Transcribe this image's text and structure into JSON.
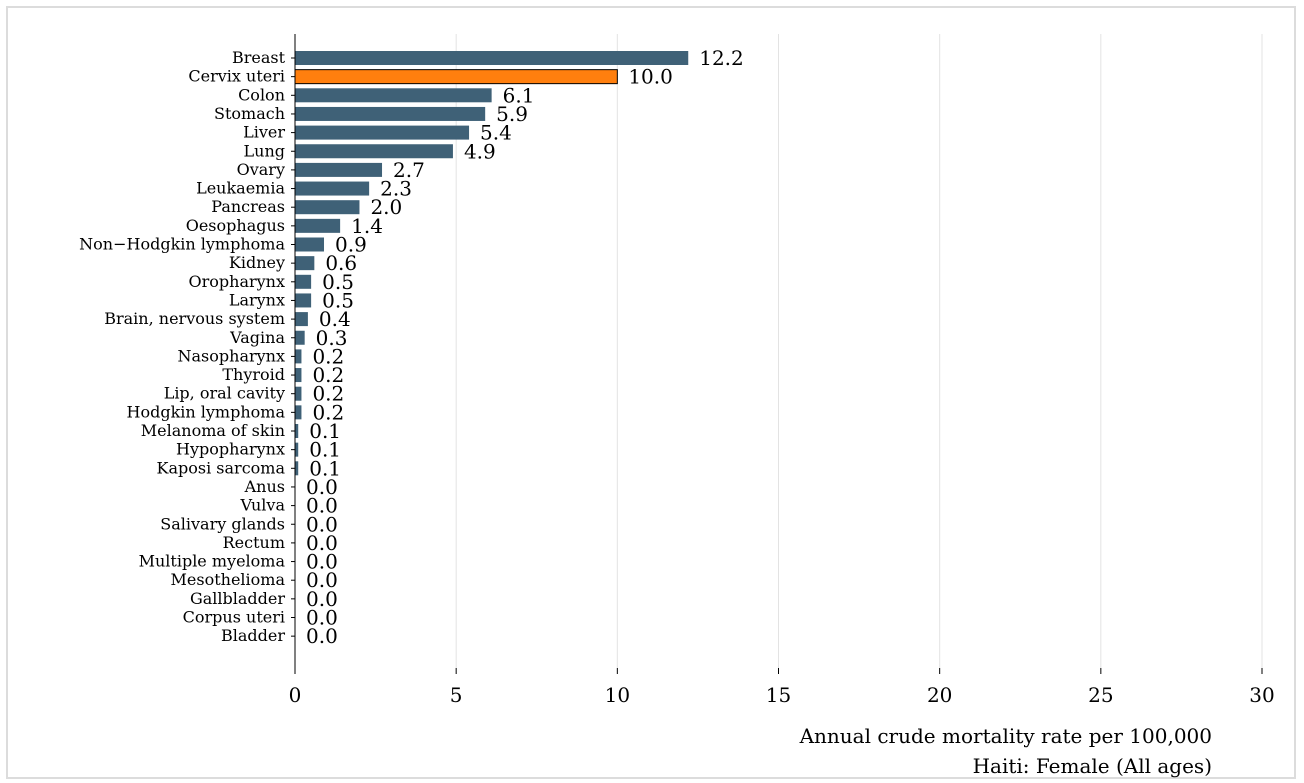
{
  "chart_data": {
    "type": "bar",
    "orientation": "horizontal",
    "categories": [
      "Breast",
      "Cervix uteri",
      "Colon",
      "Stomach",
      "Liver",
      "Lung",
      "Ovary",
      "Leukaemia",
      "Pancreas",
      "Oesophagus",
      "Non−Hodgkin lymphoma",
      "Kidney",
      "Oropharynx",
      "Larynx",
      "Brain, nervous system",
      "Vagina",
      "Nasopharynx",
      "Thyroid",
      "Lip, oral cavity",
      "Hodgkin lymphoma",
      "Melanoma of skin",
      "Hypopharynx",
      "Kaposi sarcoma",
      "Anus",
      "Vulva",
      "Salivary glands",
      "Rectum",
      "Multiple myeloma",
      "Mesothelioma",
      "Gallbladder",
      "Corpus uteri",
      "Bladder"
    ],
    "values": [
      12.2,
      10.0,
      6.1,
      5.9,
      5.4,
      4.9,
      2.7,
      2.3,
      2.0,
      1.4,
      0.9,
      0.6,
      0.5,
      0.5,
      0.4,
      0.3,
      0.2,
      0.2,
      0.2,
      0.2,
      0.1,
      0.1,
      0.1,
      0.0,
      0.0,
      0.0,
      0.0,
      0.0,
      0.0,
      0.0,
      0.0,
      0.0
    ],
    "value_labels": [
      "12.2",
      "10.0",
      "6.1",
      "5.9",
      "5.4",
      "4.9",
      "2.7",
      "2.3",
      "2.0",
      "1.4",
      "0.9",
      "0.6",
      "0.5",
      "0.5",
      "0.4",
      "0.3",
      "0.2",
      "0.2",
      "0.2",
      "0.2",
      "0.1",
      "0.1",
      "0.1",
      "0.0",
      "0.0",
      "0.0",
      "0.0",
      "0.0",
      "0.0",
      "0.0",
      "0.0",
      "0.0"
    ],
    "highlight_index": 1,
    "xlim": [
      0,
      30
    ],
    "xticks": [
      0,
      5,
      10,
      15,
      20,
      25,
      30
    ],
    "grid": "vertical",
    "xlabel": "Annual crude mortality rate per 100,000",
    "subtitle": "Haiti: Female (All ages)",
    "colors": {
      "bar": "#3f6177",
      "highlight": "#ff7f0e",
      "highlight_edge": "#000000",
      "grid": "#e3e3e3",
      "axis": "#000000"
    }
  }
}
